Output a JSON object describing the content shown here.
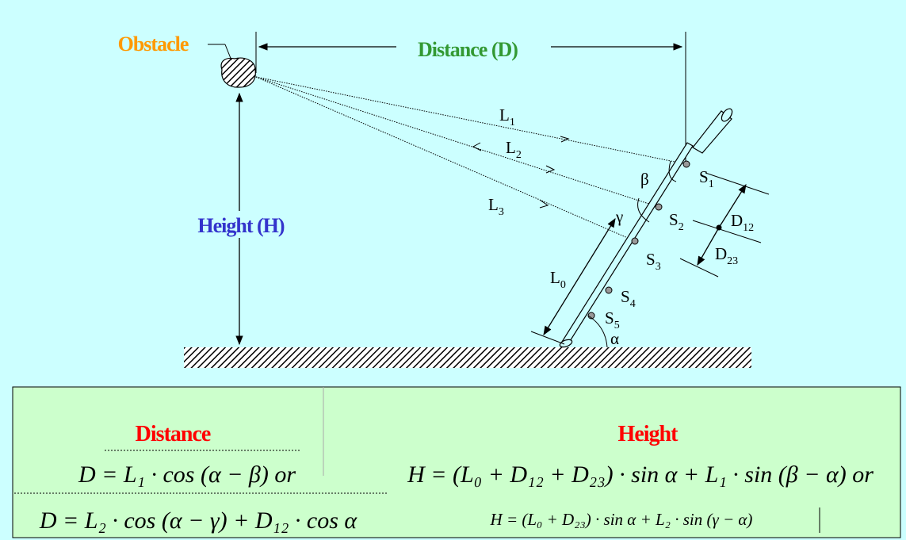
{
  "labels": {
    "obstacle": "Obstacle",
    "distance": "Distance (D)",
    "height": "Height (H)",
    "L1": "L",
    "L1_sub": "1",
    "L2": "L",
    "L2_sub": "2",
    "L3": "L",
    "L3_sub": "3",
    "L0": "L",
    "L0_sub": "0",
    "S1": "S",
    "S1_sub": "1",
    "S2": "S",
    "S2_sub": "2",
    "S3": "S",
    "S3_sub": "3",
    "S4": "S",
    "S4_sub": "4",
    "S5": "S",
    "S5_sub": "5",
    "D12": "D",
    "D12_sub": "12",
    "D23": "D",
    "D23_sub": "23",
    "beta": "β",
    "gamma": "γ",
    "alpha": "α"
  },
  "formulas": {
    "distance_title": "Distance",
    "height_title": "Height",
    "d1": "D = L₁ · cos (α − β)  or",
    "d2": "D = L₂ · cos (α − γ) + D₁₂ · cos α",
    "h1": "H = (L₀ + D₁₂ + D₂₃) · sin α + L₁ · sin (β − α)  or",
    "h2": "H = (L₀ + D₂₃) · sin α  + L₂ · sin (γ − α)"
  },
  "colors": {
    "background": "#ccffff",
    "table_fill": "#ccffcc",
    "obstacle": "#ff9900",
    "distance": "#339933",
    "height": "#3333cc",
    "formula_title": "#ff0000"
  }
}
